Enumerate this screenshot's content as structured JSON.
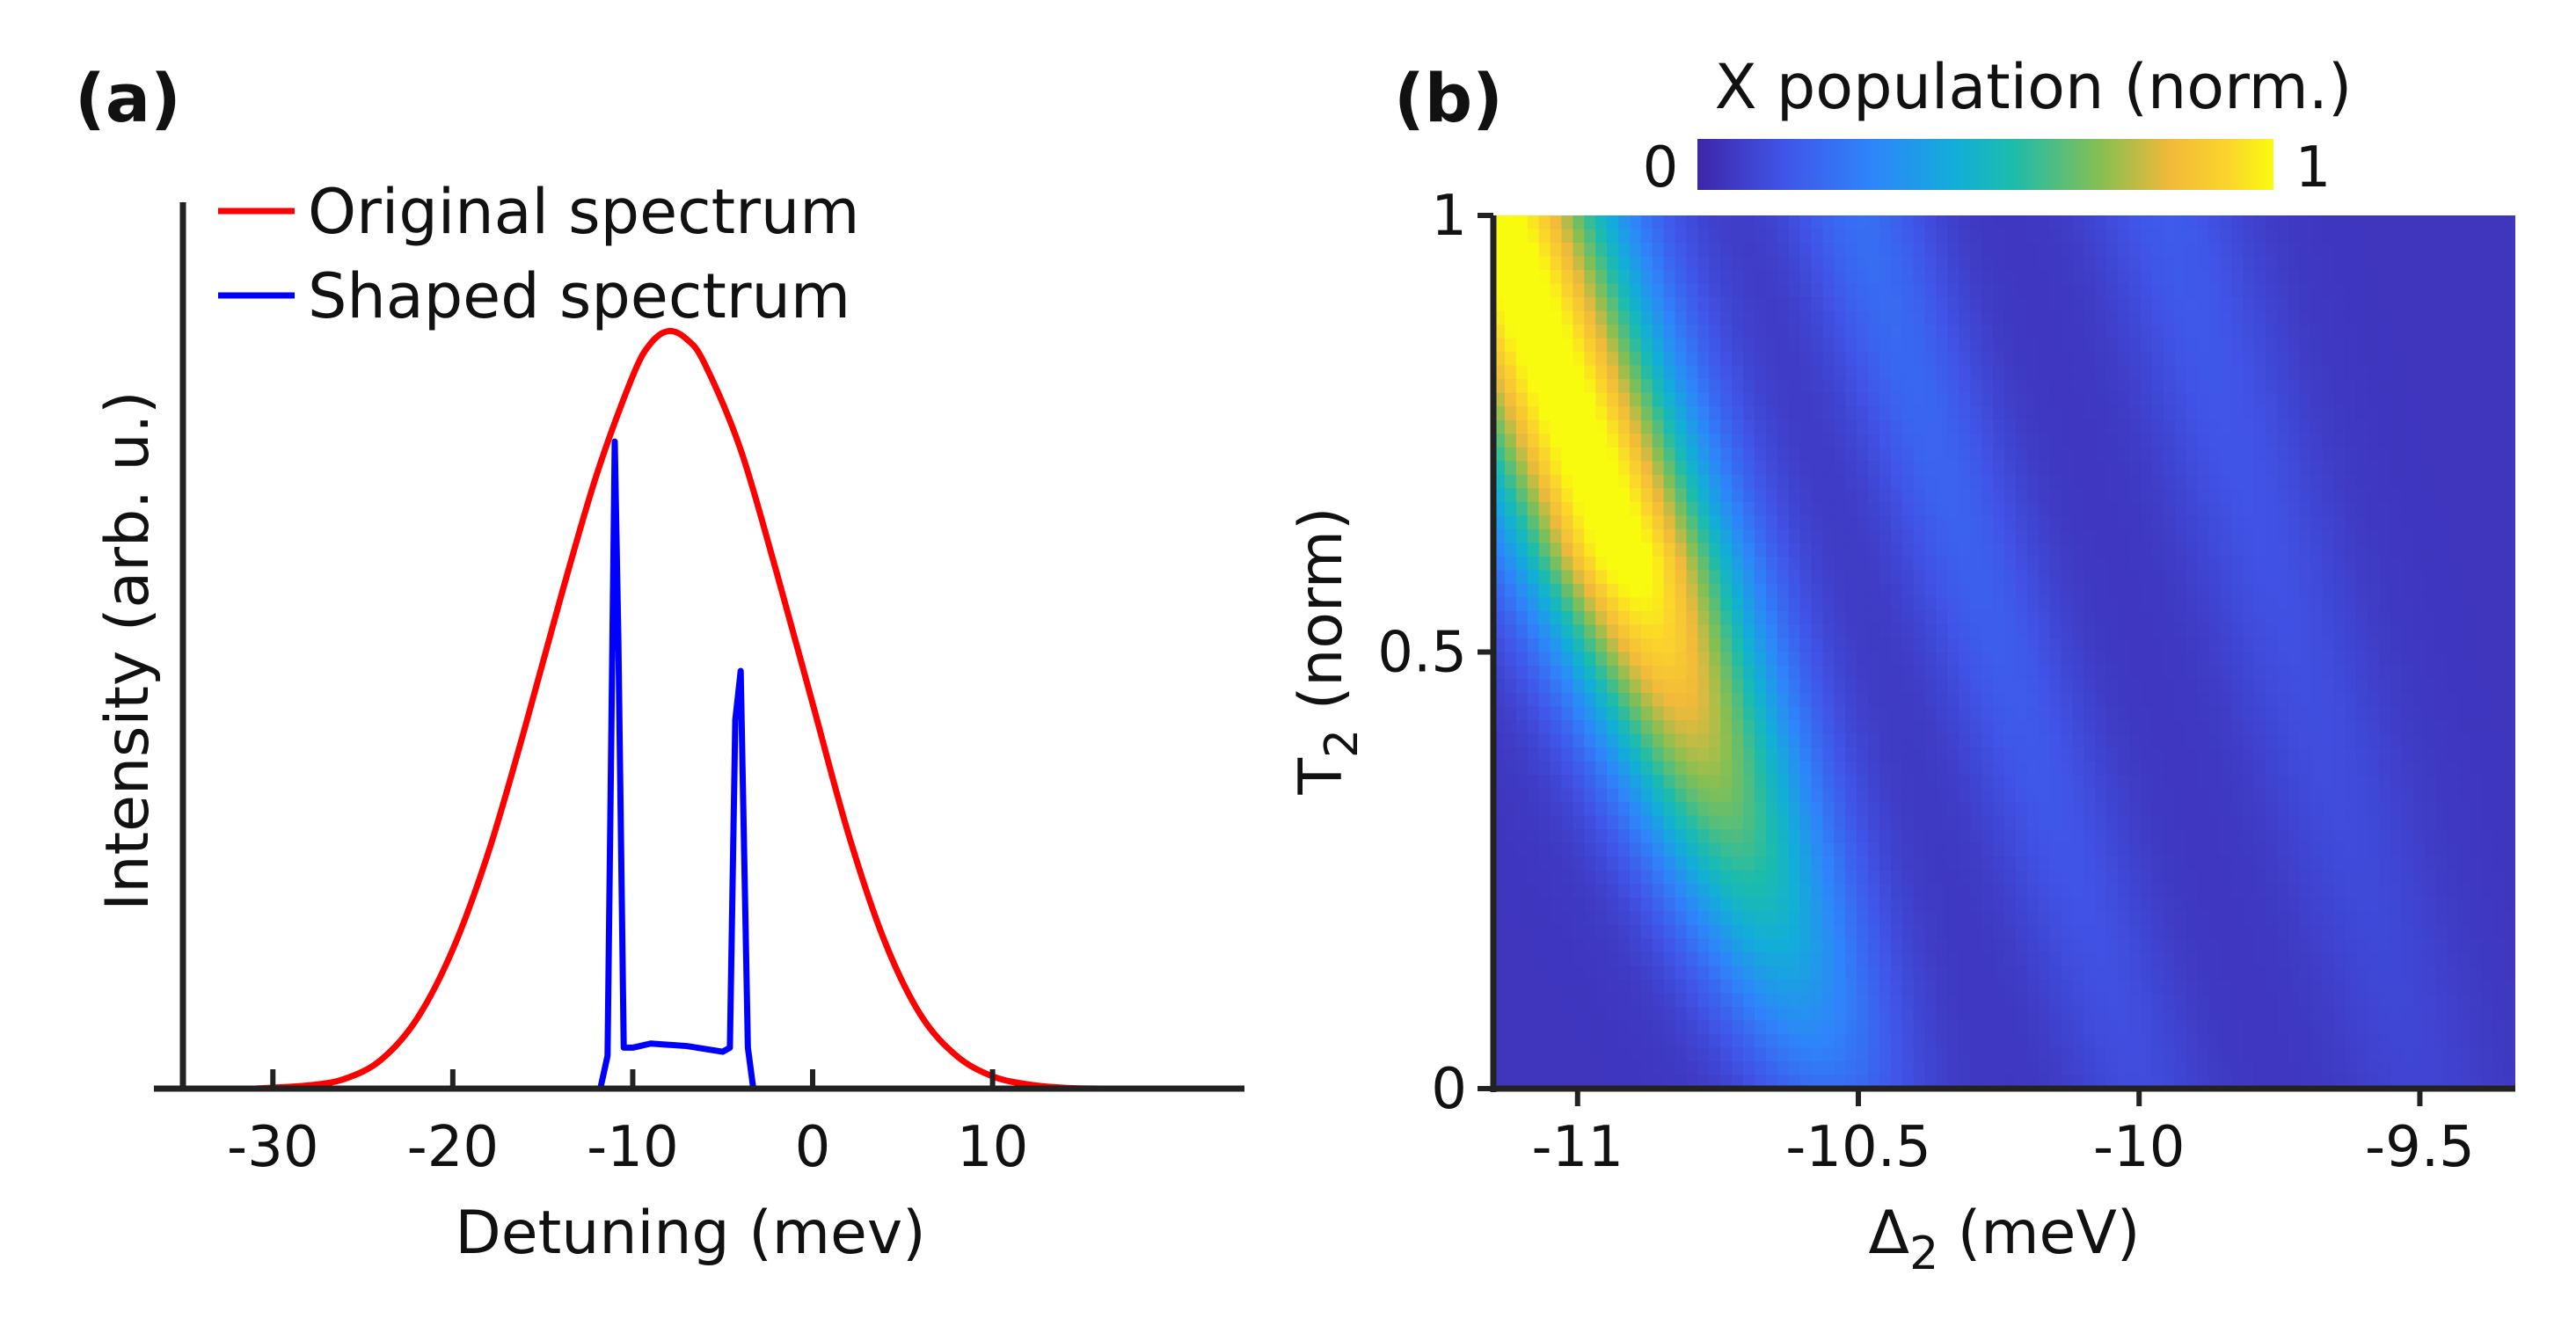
{
  "chart_data": [
    {
      "panel": "(a)",
      "type": "line",
      "xlabel": "Detuning (mev)",
      "ylabel": "Intensity (arb. u.)",
      "xlim": [
        -35,
        24
      ],
      "ylim": [
        0,
        1.05
      ],
      "xticks": [
        -30,
        -20,
        -10,
        0,
        10
      ],
      "xtick_labels": [
        "-30",
        "-20",
        "-10",
        "0",
        "10"
      ],
      "yticks": [],
      "legend_position": "top-left",
      "series": [
        {
          "name": "Original spectrum",
          "color": "#ff0000",
          "x": [
            -31,
            -28,
            -26,
            -24,
            -22,
            -20,
            -18,
            -16,
            -14,
            -12,
            -10,
            -9,
            -8,
            -7,
            -6,
            -4,
            -2,
            0,
            2,
            4,
            6,
            8,
            10,
            12,
            14,
            16
          ],
          "y": [
            0.0,
            0.004,
            0.012,
            0.035,
            0.085,
            0.17,
            0.29,
            0.44,
            0.6,
            0.75,
            0.87,
            0.91,
            0.925,
            0.915,
            0.885,
            0.78,
            0.63,
            0.47,
            0.31,
            0.18,
            0.09,
            0.04,
            0.015,
            0.005,
            0.001,
            0.0
          ]
        },
        {
          "name": "Shaped spectrum",
          "color": "#0000ff",
          "x": [
            -31,
            -11.8,
            -11.4,
            -11.0,
            -10.8,
            -10.5,
            -10.0,
            -9.0,
            -7.0,
            -5.0,
            -4.6,
            -4.3,
            -4.0,
            -3.6,
            -3.3,
            16
          ],
          "y": [
            0.0,
            0.0,
            0.04,
            0.79,
            0.55,
            0.05,
            0.05,
            0.055,
            0.052,
            0.045,
            0.05,
            0.45,
            0.51,
            0.05,
            0.0,
            0.0
          ]
        }
      ]
    },
    {
      "panel": "(b)",
      "type": "heatmap",
      "xlabel": "Δ2 (meV)",
      "ylabel": "T2 (norm)",
      "xlim": [
        -11.15,
        -9.33
      ],
      "ylim": [
        0,
        1
      ],
      "xticks": [
        -11,
        -10.5,
        -10,
        -9.5
      ],
      "xtick_labels": [
        "-11",
        "-10.5",
        "-10",
        "-9.5"
      ],
      "yticks": [
        0,
        0.5,
        1
      ],
      "ytick_labels": [
        "0",
        "0.5",
        "1"
      ],
      "colorbar": {
        "title": "X population (norm.)",
        "min_label": "0",
        "max_label": "1",
        "range": [
          0,
          1
        ],
        "colormap": "parula"
      }
    }
  ]
}
